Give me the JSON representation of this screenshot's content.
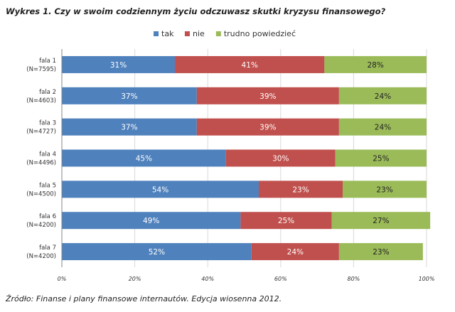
{
  "title": "Wykres 1. Czy w swoim codziennym życiu odczuwasz skutki kryzysu finansowego?",
  "source": "Źródło: Finanse i plany finansowe internautów. Edycja wiosenna 2012.",
  "colors": {
    "tak": "#4f81bd",
    "nie": "#c0504d",
    "trudno": "#9bbb59",
    "grid": "#d9d9d9",
    "axis": "#868686"
  },
  "chart_data": {
    "type": "bar",
    "orientation": "horizontal",
    "stacked": true,
    "percent": true,
    "categories": [
      [
        "fala 1",
        "(N=7595)"
      ],
      [
        "fala 2",
        "(N=4603)"
      ],
      [
        "fala 3",
        "(N=4727)"
      ],
      [
        "fala 4",
        "(N=4496)"
      ],
      [
        "fala 5",
        "(N=4500)"
      ],
      [
        "fala 6",
        "(N=4200)"
      ],
      [
        "fala 7",
        "(N=4200)"
      ]
    ],
    "series": [
      {
        "name": "tak",
        "values": [
          31,
          37,
          37,
          45,
          54,
          49,
          52
        ],
        "labels": [
          "31%",
          "37%",
          "37%",
          "45%",
          "54%",
          "49%",
          "52%"
        ]
      },
      {
        "name": "nie",
        "values": [
          41,
          39,
          39,
          30,
          23,
          25,
          24
        ],
        "labels": [
          "41%",
          "39%",
          "39%",
          "30%",
          "23%",
          "25%",
          "24%"
        ]
      },
      {
        "name": "trudno powiedzieć",
        "values": [
          28,
          24,
          24,
          25,
          23,
          27,
          23
        ],
        "labels": [
          "28%",
          "24%",
          "24%",
          "25%",
          "23%",
          "27%",
          "23%"
        ]
      }
    ],
    "xticks": [
      "0%",
      "20%",
      "40%",
      "60%",
      "80%",
      "100%"
    ],
    "xlim": [
      0,
      100
    ],
    "grid": true,
    "legend": "top"
  }
}
